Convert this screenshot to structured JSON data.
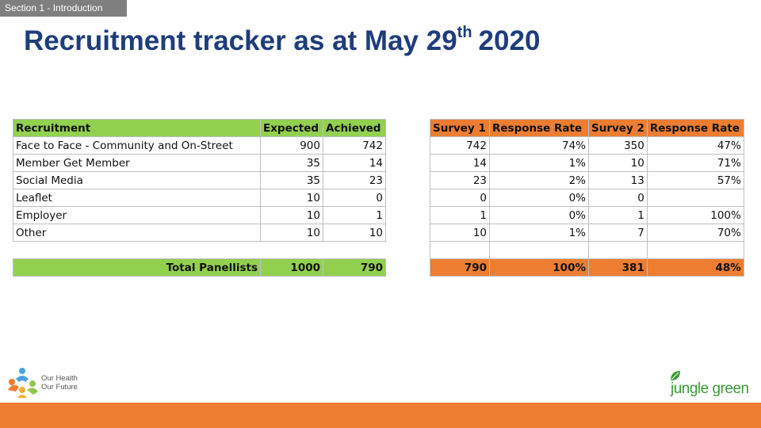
{
  "section_tab": "Section 1 - Introduction",
  "title": {
    "main": "Recruitment tracker as at May 29",
    "superscript": "th",
    "year": "2020"
  },
  "recruitment_table": {
    "headers": [
      "Recruitment",
      "Expected",
      "Achieved"
    ],
    "rows": [
      [
        "Face to Face - Community and On-Street",
        "900",
        "742"
      ],
      [
        "Member Get Member",
        "35",
        "14"
      ],
      [
        "Social Media",
        "35",
        "23"
      ],
      [
        "Leaflet",
        "10",
        "0"
      ],
      [
        "Employer",
        "10",
        "1"
      ],
      [
        "Other",
        "10",
        "10"
      ]
    ],
    "total": [
      "Total Panellists",
      "1000",
      "790"
    ]
  },
  "survey_table": {
    "headers": [
      "Survey 1",
      "Response Rate",
      "Survey 2",
      "Response Rate"
    ],
    "rows": [
      [
        "742",
        "74%",
        "350",
        "47%"
      ],
      [
        "14",
        "1%",
        "10",
        "71%"
      ],
      [
        "23",
        "2%",
        "13",
        "57%"
      ],
      [
        "0",
        "0%",
        "0",
        ""
      ],
      [
        "1",
        "0%",
        "1",
        "100%"
      ],
      [
        "10",
        "1%",
        "7",
        "70%"
      ]
    ],
    "total": [
      "790",
      "100%",
      "381",
      "48%"
    ]
  },
  "logos": {
    "left_name_line1": "Our Health",
    "left_name_line2": "Our Future",
    "right_brand": "jungle green",
    "left_icon": "people-cluster-icon",
    "right_icon": "leaf-icon"
  },
  "colors": {
    "green_header": "#92d050",
    "orange_header": "#ed7d31",
    "title_blue": "#1f3d7a"
  }
}
